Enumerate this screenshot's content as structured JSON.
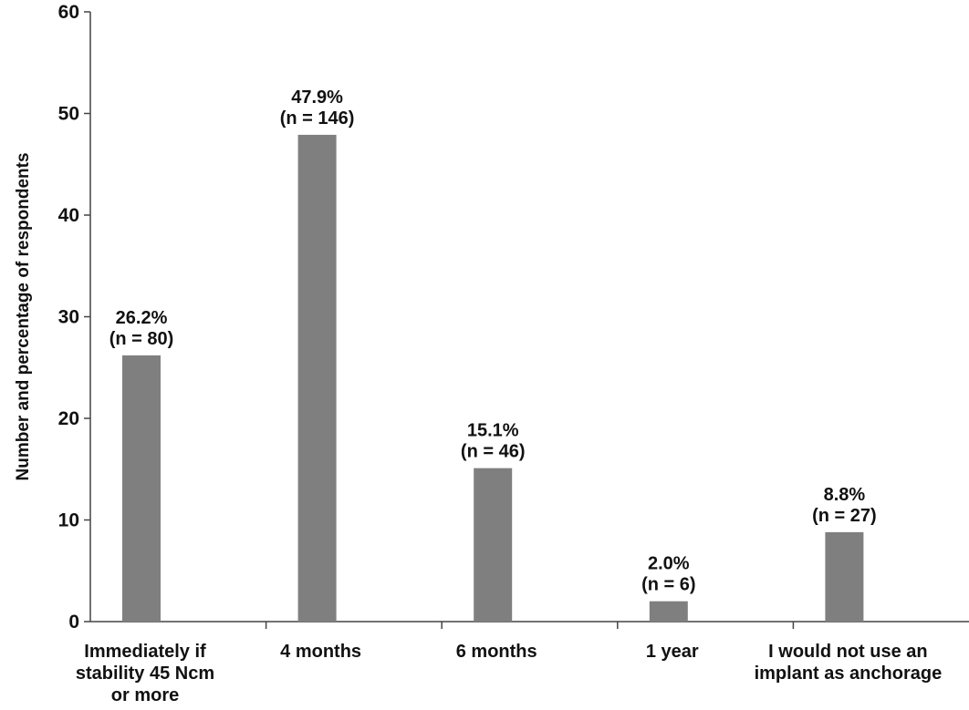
{
  "chart_data": {
    "type": "bar",
    "title": "",
    "xlabel": "",
    "ylabel": "Number and percentage of respondents",
    "ylim": [
      0,
      60
    ],
    "yticks": [
      0,
      10,
      20,
      30,
      40,
      50,
      60
    ],
    "grid": false,
    "bar_color": "#7f7f7f",
    "categories": [
      [
        "Immediately if",
        "stability 45 Ncm",
        "or more"
      ],
      [
        "4 months"
      ],
      [
        "6 months"
      ],
      [
        "1 year"
      ],
      [
        "I would not use an",
        "implant as anchorage"
      ]
    ],
    "values": [
      26.2,
      47.9,
      15.1,
      2.0,
      8.8
    ],
    "data_labels": [
      [
        "26.2%",
        "(n = 80)"
      ],
      [
        "47.9%",
        "(n = 146)"
      ],
      [
        "15.1%",
        "(n = 46)"
      ],
      [
        "2.0%",
        "(n = 6)"
      ],
      [
        "8.8%",
        "(n = 27)"
      ]
    ]
  }
}
